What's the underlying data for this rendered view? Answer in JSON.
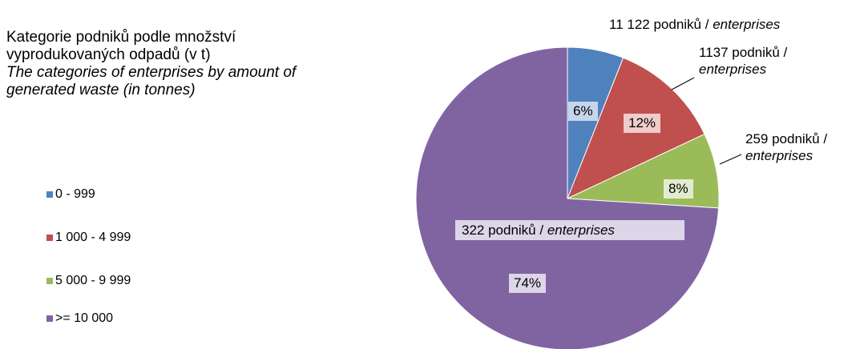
{
  "chart_data": {
    "type": "pie",
    "title": "Kategorie podniků podle množství vyprodukovaných odpadů (v t)",
    "subtitle": "The categories of enterprises by amount of generated waste (in tonnes)",
    "categories": [
      "0 - 999",
      "1 000 - 4 999",
      "5 000 - 9 999",
      ">= 10 000"
    ],
    "values": [
      6,
      12,
      8,
      74
    ],
    "value_labels": [
      "6%",
      "12%",
      "8%",
      "74%"
    ],
    "colors": [
      "#4f81bd",
      "#c0504d",
      "#9bbb59",
      "#8064a2"
    ],
    "slice_labels": [
      {
        "text": "11 122 podniků /",
        "italic": "enterprises"
      },
      {
        "text": "1137 podniků /",
        "italic": "enterprises"
      },
      {
        "text": "259 podniků /",
        "italic": "enterprises"
      },
      {
        "text": "322 podniků /",
        "italic": "enterprises"
      }
    ],
    "legend": "left"
  }
}
